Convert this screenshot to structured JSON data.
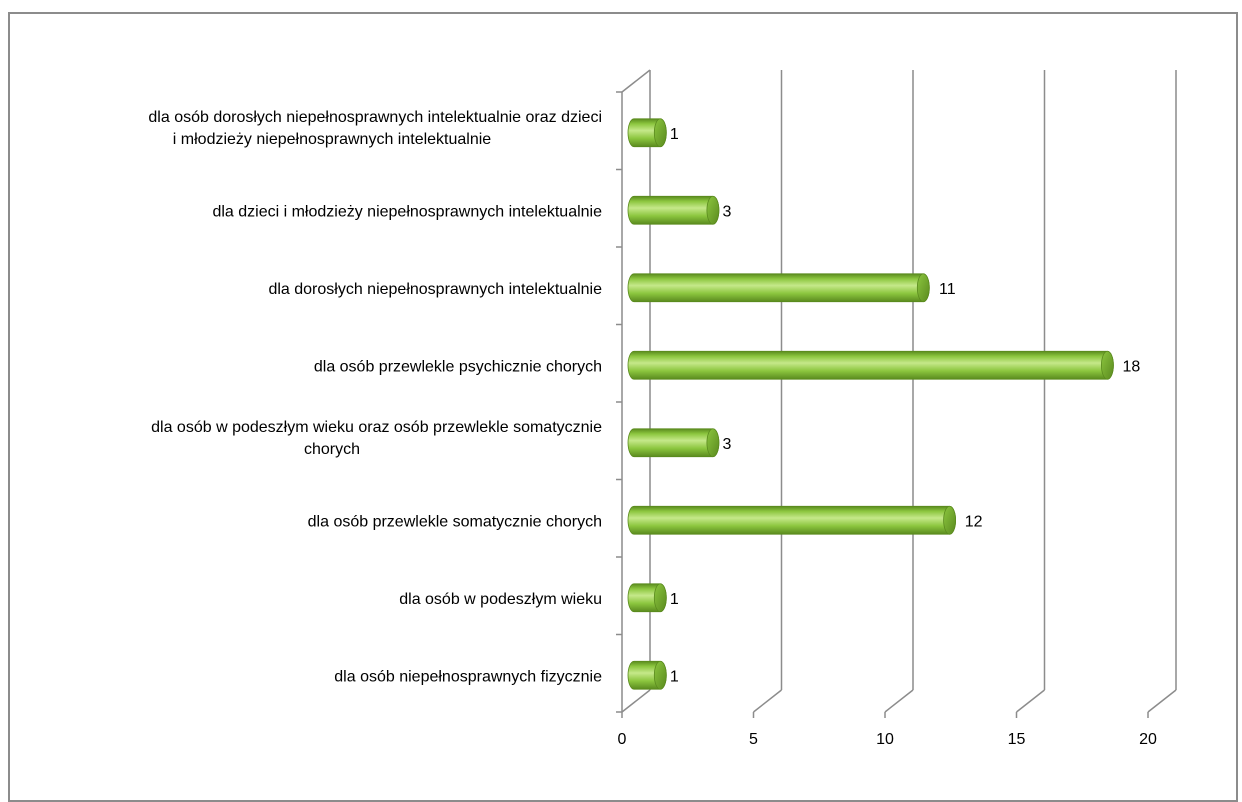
{
  "chart_data": {
    "type": "bar",
    "orientation": "horizontal",
    "style": "3d-cylinder",
    "categories": [
      "dla osób dorosłych niepełnosprawnych intelektualnie oraz dzieci i młodzieży niepełnosprawnych intelektualnie",
      "dla dzieci i młodzieży niepełnosprawnych intelektualnie",
      "dla dorosłych niepełnosprawnych intelektualnie",
      "dla osób przewlekle psychicznie chorych",
      "dla osób w podeszłym wieku oraz osób przewlekle somatycznie chorych",
      "dla osób przewlekle somatycznie chorych",
      "dla osób w podeszłym wieku",
      "dla osób niepełnosprawnych fizycznie"
    ],
    "category_lines": [
      [
        "dla osób dorosłych niepełnosprawnych intelektualnie oraz dzieci",
        "i młodzieży niepełnosprawnych intelektualnie"
      ],
      [
        "dla dzieci i młodzieży niepełnosprawnych intelektualnie"
      ],
      [
        "dla dorosłych niepełnosprawnych intelektualnie"
      ],
      [
        "dla osób przewlekle psychicznie chorych"
      ],
      [
        "dla osób w podeszłym wieku oraz osób przewlekle somatycznie",
        "chorych"
      ],
      [
        "dla osób przewlekle somatycznie chorych"
      ],
      [
        "dla osób w podeszłym wieku"
      ],
      [
        "dla osób niepełnosprawnych fizycznie"
      ]
    ],
    "values": [
      1,
      3,
      11,
      18,
      3,
      12,
      1,
      1
    ],
    "data_labels": [
      "1",
      "3",
      "11",
      "18",
      "3",
      "12",
      "1",
      "1"
    ],
    "xlim": [
      0,
      20
    ],
    "xticks": [
      0,
      5,
      10,
      15,
      20
    ],
    "xtick_labels": [
      "0",
      "5",
      "10",
      "15",
      "20"
    ],
    "grid": true,
    "legend": "none",
    "bar_color": "#8cc63f",
    "bar_highlight": "#c5e88a",
    "bar_shadow": "#5a8a1e",
    "grid_color": "#8c8c8c"
  }
}
